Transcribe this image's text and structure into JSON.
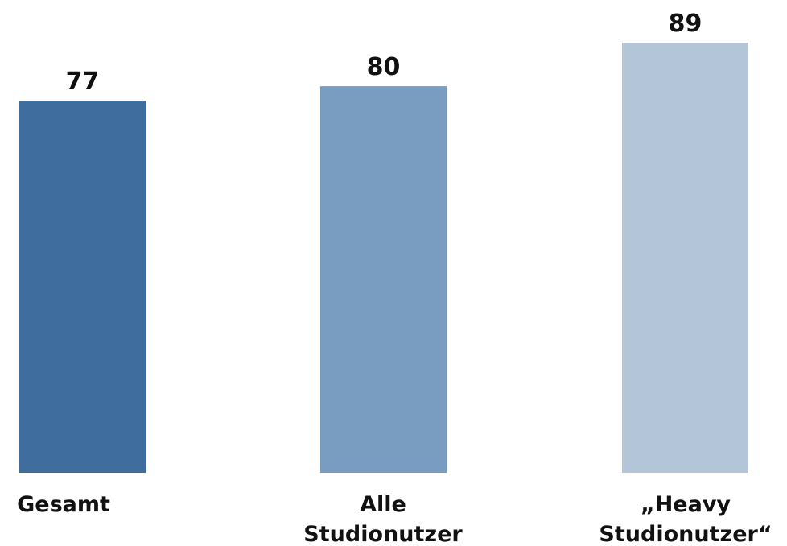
{
  "chart_data": {
    "type": "bar",
    "categories": [
      [
        "Gesamt"
      ],
      [
        "Alle",
        "Studionutzer"
      ],
      [
        "„Heavy",
        "Studionutzer“"
      ]
    ],
    "values": [
      77,
      80,
      89
    ],
    "value_labels": [
      "77",
      "80",
      "89"
    ],
    "colors": [
      "#3f6e9e",
      "#799dc0",
      "#b2c5d9"
    ],
    "title": "",
    "xlabel": "",
    "ylabel": "",
    "ylim": [
      0,
      89
    ],
    "grid": false,
    "legend": "none"
  }
}
